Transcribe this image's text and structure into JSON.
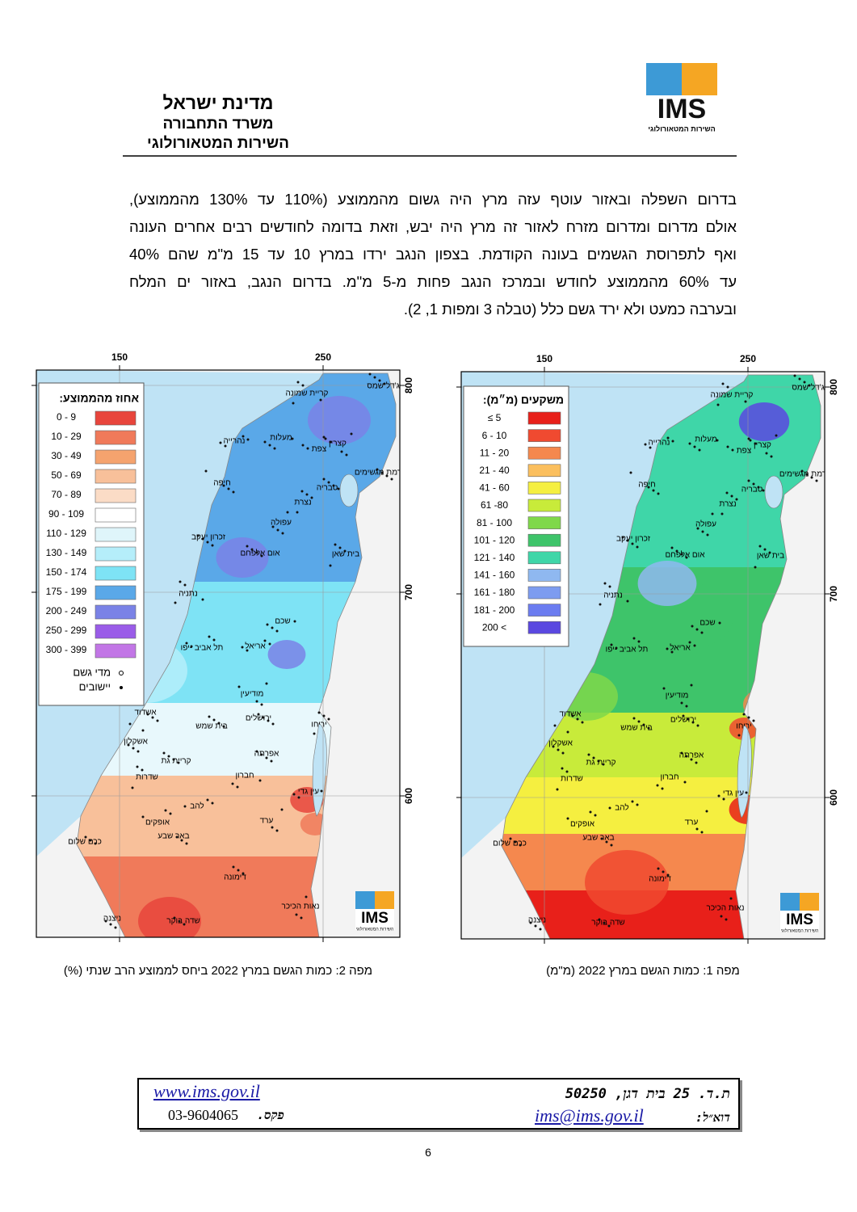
{
  "header": {
    "line1": "מדינת ישראל",
    "line2": "משרד התחבורה",
    "line3": "השירות המטאורולוגי"
  },
  "logo": {
    "text": "IMS",
    "subtitle": "השירות המטאורולוגי"
  },
  "paragraph": [
    "בדרום השפלה ובאזור עוטף עזה מרץ היה גשום מהממוצע (110% עד 130% מהממוצע),",
    "אולם מדרום ומדרום מזרח לאזור זה מרץ היה יבש, וזאת בדומה לחודשים רבים אחרים העונה",
    "ואף לתפרוסת הגשמים בעונה הקודמת. בצפון הנגב ירדו במרץ 10 עד 15 מ\"מ שהם 40%",
    "עד 60% מהממוצע לחודש ובמרכז הנגב פחות מ-5 מ\"מ. בדרום הנגב, באזור ים המלח",
    "ובערבה כמעט ולא ירד גשם כלל  (טבלה 3 ומפות 1, 2)."
  ],
  "maps": [
    {
      "caption": "מפה 2: כמות הגשם במרץ 2022  ביחס לממוצע הרב שנתי (%)",
      "legend_title": "אחוז מהממוצע:",
      "legend": [
        {
          "label": "0 - 9",
          "color": "#e8453c"
        },
        {
          "label": "10 - 29",
          "color": "#f07a5a"
        },
        {
          "label": "30 - 49",
          "color": "#f5a36e"
        },
        {
          "label": "50 - 69",
          "color": "#f8c09a"
        },
        {
          "label": "70 - 89",
          "color": "#fbdcc6"
        },
        {
          "label": "90 - 109",
          "color": "#ffffff"
        },
        {
          "label": "110 - 129",
          "color": "#dff5fa"
        },
        {
          "label": "130 - 149",
          "color": "#b5eefa"
        },
        {
          "label": "150 - 174",
          "color": "#7ee3f5"
        },
        {
          "label": "175 - 199",
          "color": "#5aa8e8"
        },
        {
          "label": "200 - 249",
          "color": "#7a82e6"
        },
        {
          "label": "250 - 299",
          "color": "#9a5ce8"
        },
        {
          "label": "300 - 399",
          "color": "#c276e6"
        }
      ],
      "symbols": [
        "מדי גשם",
        "יישובים"
      ],
      "x_ticks": [
        "150",
        "250"
      ],
      "y_ticks": [
        "800",
        "700",
        "600"
      ]
    },
    {
      "caption": "מפה 1: כמות הגשם במרץ 2022 (מ\"מ)",
      "legend_title": "משקעים (מ״מ):",
      "legend": [
        {
          "label": "≤ 5",
          "color": "#e8201a"
        },
        {
          "label": "6 - 10",
          "color": "#f04a30"
        },
        {
          "label": "11 - 20",
          "color": "#f5884e"
        },
        {
          "label": "21 - 40",
          "color": "#fbbf5e"
        },
        {
          "label": "41 - 60",
          "color": "#f5ef40"
        },
        {
          "label": "61 -80",
          "color": "#c8eb3a"
        },
        {
          "label": "81 - 100",
          "color": "#7fd84a"
        },
        {
          "label": "101 - 120",
          "color": "#3ec46a"
        },
        {
          "label": "121 - 140",
          "color": "#3fd6a8"
        },
        {
          "label": "141 - 160",
          "color": "#8fb8f0"
        },
        {
          "label": "161 - 180",
          "color": "#7d9cf0"
        },
        {
          "label": "181 - 200",
          "color": "#6b7cf0"
        },
        {
          "label": "200 <",
          "color": "#5a48e0"
        }
      ],
      "x_ticks": [
        "150",
        "250"
      ],
      "y_ticks": [
        "800",
        "700",
        "600"
      ]
    }
  ],
  "places": [
    "מג'דל שמס",
    "קריית שמונה",
    "מעלות",
    "נהרייה",
    "צפת",
    "קצרין",
    "חיפה",
    "רמת מגשימים",
    "טבריה",
    "נצרת",
    "עפולה",
    "זכרון יעקב",
    "אום אלפחם",
    "בית שאן",
    "נתניה",
    "שכם",
    "אריאל",
    "תל אביב -יפו",
    "מודיעין",
    "אשדוד",
    "ירושלים",
    "בית שמש",
    "יריחו",
    "אשקלון",
    "אפרתה",
    "קריית גת",
    "שדרות",
    "חברון",
    "עין גדי",
    "להב",
    "אופקים",
    "ערד",
    "באר שבע",
    "כרם שלום",
    "דימונה",
    "נאות הכיכר",
    "ניצנה",
    "שדה בוקר"
  ],
  "footer": {
    "website": "www.ims.gov.il",
    "address": "ת.ד. 25 בית דגן, 50250",
    "fax_number": "03-9604065",
    "fax_label": "פקס.",
    "email": "ims@ims.gov.il",
    "email_label": "דוא״ל:"
  },
  "page_number": "6"
}
